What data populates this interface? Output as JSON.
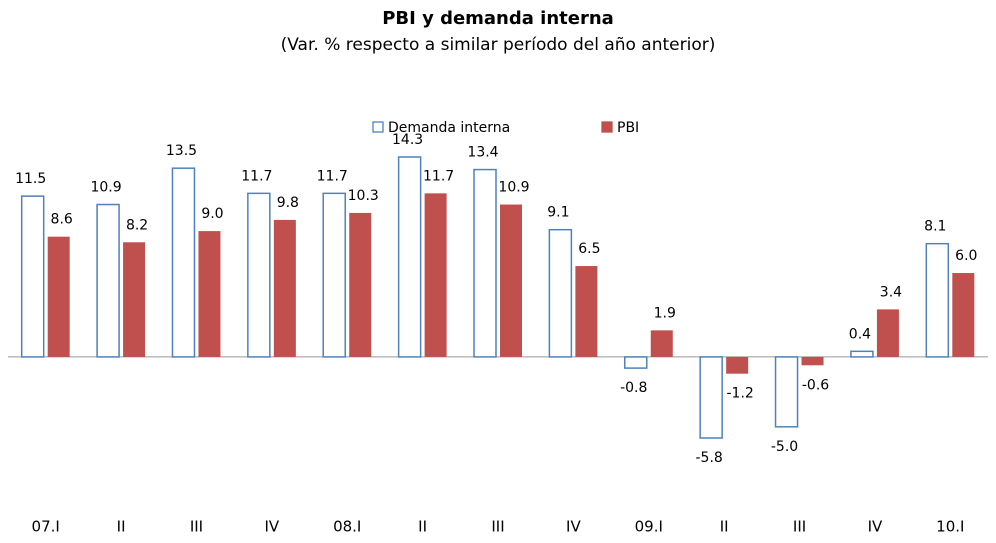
{
  "chart_data": {
    "type": "bar",
    "title": "PBI y demanda interna",
    "subtitle": "(Var. % respecto a similar período del año anterior)",
    "categories": [
      "07.I",
      "II",
      "III",
      "IV",
      "08.I",
      "II",
      "III",
      "IV",
      "09.I",
      "II",
      "III",
      "IV",
      "10.I"
    ],
    "series": [
      {
        "name": "Demanda interna",
        "color": "#4f81bd",
        "values": [
          11.5,
          10.9,
          13.5,
          11.7,
          11.7,
          14.3,
          13.4,
          9.1,
          -0.8,
          -5.8,
          -5.0,
          0.4,
          8.1
        ],
        "value_labels": [
          "11.5",
          "10.9",
          "13.5",
          "11.7",
          "11.7",
          "14.3",
          "13.4",
          "9.1",
          "-0.8",
          "-5.8",
          "-5.0",
          "0.4",
          "8.1"
        ]
      },
      {
        "name": "PBI",
        "color": "#c0504d",
        "values": [
          8.6,
          8.2,
          9.0,
          9.8,
          10.3,
          11.7,
          10.9,
          6.5,
          1.9,
          -1.2,
          -0.6,
          3.4,
          6.0
        ],
        "value_labels": [
          "8.6",
          "8.2",
          "9.0",
          "9.8",
          "10.3",
          "11.7",
          "10.9",
          "6.5",
          "1.9",
          "-1.2",
          "-0.6",
          "3.4",
          "6.0"
        ]
      }
    ]
  }
}
